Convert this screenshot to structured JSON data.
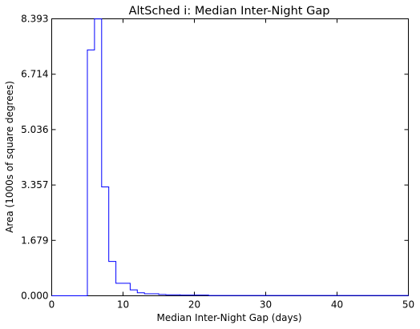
{
  "chart_data": {
    "type": "histogram",
    "title": "AltSched  i: Median Inter-Night Gap",
    "xlabel": "Median Inter-Night Gap (days)",
    "ylabel": "Area (1000s of square degrees)",
    "xlim": [
      0,
      50
    ],
    "ylim": [
      0,
      8.393
    ],
    "xticks": [
      "0",
      "10",
      "20",
      "30",
      "40",
      "50"
    ],
    "yticks": [
      "0.000",
      "1.679",
      "3.357",
      "5.036",
      "6.714",
      "8.393"
    ],
    "grid": false,
    "line_color": "#0000ff",
    "bin_width": 1,
    "bin_edges": [
      0,
      1,
      2,
      3,
      4,
      5,
      6,
      7,
      8,
      9,
      10,
      11,
      12,
      13,
      14,
      15,
      16,
      17,
      18,
      19,
      20,
      21,
      22,
      23,
      24,
      25,
      26,
      27,
      28,
      29,
      30,
      31,
      32,
      33,
      34,
      35,
      36,
      37,
      38,
      39,
      40,
      41,
      42,
      43,
      44,
      45,
      46,
      47,
      48,
      49,
      50
    ],
    "values": [
      0,
      0,
      0,
      0,
      0,
      7.45,
      8.39,
      3.3,
      1.04,
      0.38,
      0.38,
      0.18,
      0.09,
      0.06,
      0.06,
      0.04,
      0.03,
      0.03,
      0.02,
      0.02,
      0.02,
      0.02,
      0.01,
      0.01,
      0.01,
      0.01,
      0.01,
      0.01,
      0.01,
      0.01,
      0.01,
      0.01,
      0.01,
      0.01,
      0.01,
      0.01,
      0.01,
      0.01,
      0.01,
      0.01,
      0.01,
      0.01,
      0.01,
      0.01,
      0.01,
      0.01,
      0.01,
      0.01,
      0.01,
      0.01
    ]
  }
}
